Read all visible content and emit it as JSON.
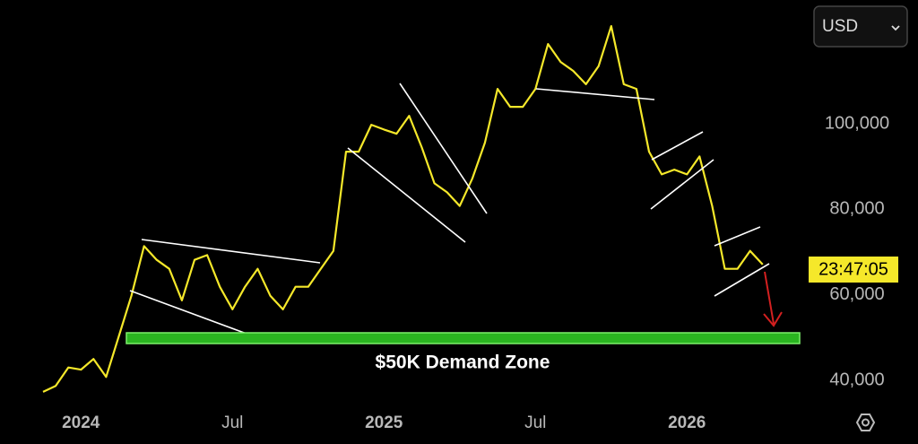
{
  "chart_data": {
    "type": "line",
    "currency": "USD",
    "countdown": "23:47:05",
    "annotation": "$50K Demand Zone",
    "color": "#f5e82a",
    "categories": [
      null,
      null,
      null,
      "2024",
      null,
      null,
      null,
      null,
      null,
      null,
      null,
      null,
      null,
      null,
      null,
      "Jul",
      null,
      null,
      null,
      null,
      null,
      null,
      null,
      null,
      null,
      null,
      null,
      "2025",
      null,
      null,
      null,
      null,
      null,
      null,
      null,
      null,
      null,
      null,
      null,
      "Jul",
      null,
      null,
      null,
      null,
      null,
      null,
      null,
      null,
      null,
      null,
      null,
      "2026",
      null,
      null,
      null,
      null,
      null,
      null
    ],
    "values": [
      37300,
      38700,
      43000,
      42500,
      45000,
      40800,
      50300,
      59800,
      71400,
      68200,
      66100,
      58700,
      68200,
      69300,
      61900,
      56600,
      61900,
      66100,
      59800,
      56600,
      61900,
      61900,
      66100,
      70300,
      93500,
      93500,
      99800,
      98700,
      97700,
      101900,
      94500,
      86100,
      84000,
      80800,
      87200,
      95600,
      108200,
      104000,
      104000,
      108200,
      118700,
      114500,
      112400,
      109300,
      113500,
      122900,
      109300,
      108200,
      93500,
      88200,
      89300,
      88200,
      92400,
      80800,
      66100,
      66100,
      70300,
      67100
    ],
    "ylim": [
      33500,
      129000
    ],
    "yticks": [
      {
        "value": 40000,
        "label": "40,000"
      },
      {
        "value": 60000,
        "label": "60,000"
      },
      {
        "value": 80000,
        "label": "80,000"
      },
      {
        "value": 100000,
        "label": "100,000"
      }
    ],
    "grid": false
  }
}
